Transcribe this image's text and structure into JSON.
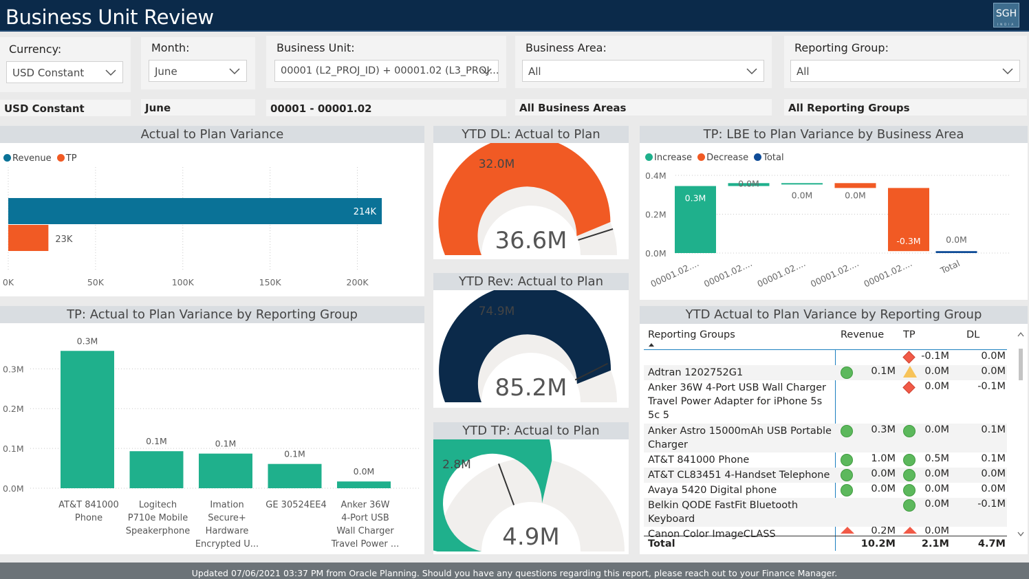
{
  "header": {
    "title": "Business Unit Review",
    "logo_text": "SGH",
    "logo_sub": "INDIA"
  },
  "slicers": {
    "currency": {
      "label": "Currency:",
      "value": "USD Constant",
      "card": "USD Constant"
    },
    "month": {
      "label": "Month:",
      "value": "June",
      "card": "June"
    },
    "business_unit": {
      "label": "Business Unit:",
      "value": "00001 (L2_PROJ_ID) + 00001.02 (L3_PROJ...",
      "card": "00001 - 00001.02"
    },
    "business_area": {
      "label": "Business Area:",
      "value": "All",
      "card": "All Business Areas"
    },
    "reporting_group": {
      "label": "Reporting Group:",
      "value": "All",
      "card": "All Reporting Groups"
    }
  },
  "colors": {
    "revenue": "#0a7297",
    "tp": "#f15a24",
    "green": "#1fb08c",
    "navy": "#0b2a4a",
    "gauge_bg": "#f1efed",
    "total": "#0f4c97"
  },
  "variance_chart": {
    "title": "Actual to Plan Variance",
    "chart_data": {
      "type": "bar",
      "orientation": "horizontal",
      "series": [
        {
          "name": "Revenue",
          "values": [
            214
          ]
        },
        {
          "name": "TP",
          "values": [
            23
          ]
        }
      ],
      "data_labels": [
        "214K",
        "23K"
      ],
      "xlim": [
        0,
        225
      ],
      "ticks": [
        0,
        50,
        100,
        150,
        200
      ],
      "tick_labels": [
        "0K",
        "50K",
        "100K",
        "150K",
        "200K"
      ],
      "legend": "top-left",
      "grid": true
    }
  },
  "gauges": [
    {
      "title": "YTD DL: Actual to Plan",
      "chart_data": {
        "type": "gauge",
        "value": 32.0,
        "max": 36.6,
        "target": 33.0,
        "value_label": "32.0M",
        "target_label": "36.6M"
      },
      "color": "#f15a24"
    },
    {
      "title": "YTD Rev: Actual to Plan",
      "chart_data": {
        "type": "gauge",
        "value": 74.9,
        "max": 85.2,
        "target": 72.5,
        "value_label": "74.9M",
        "target_label": "85.2M"
      },
      "color": "#0b2a4a"
    },
    {
      "title": "YTD TP: Actual to Plan",
      "chart_data": {
        "type": "gauge",
        "value": 2.8,
        "max": 4.9,
        "target": 1.9,
        "value_label": "2.8M",
        "target_label": "4.9M"
      },
      "color": "#1fb08c"
    }
  ],
  "waterfall": {
    "title": "TP: LBE to Plan Variance by Business Area",
    "legend": [
      "Increase",
      "Decrease",
      "Total"
    ],
    "chart_data": {
      "type": "waterfall",
      "categories": [
        "00001.02....",
        "00001.02....",
        "00001.02....",
        "00001.02....",
        "00001.02....",
        "Total"
      ],
      "steps": [
        {
          "start": 0.0,
          "end": 0.345,
          "kind": "increase",
          "label": "0.3M"
        },
        {
          "start": 0.345,
          "end": 0.36,
          "kind": "increase",
          "label": "0.0M"
        },
        {
          "start": 0.36,
          "end": 0.36,
          "kind": "increase",
          "label": "0.0M"
        },
        {
          "start": 0.36,
          "end": 0.335,
          "kind": "decrease",
          "label": "0.0M"
        },
        {
          "start": 0.335,
          "end": 0.01,
          "kind": "decrease",
          "label": "-0.3M"
        },
        {
          "start": 0.0,
          "end": 0.01,
          "kind": "total",
          "label": "0.0M"
        }
      ],
      "ylim": [
        0,
        0.4
      ],
      "ticks": [
        0.0,
        0.2,
        0.4
      ],
      "tick_labels": [
        "0.0M",
        "0.2M",
        "0.4M"
      ],
      "grid": true
    }
  },
  "tp_bar": {
    "title": "TP: Actual to Plan Variance by Reporting Group",
    "chart_data": {
      "type": "bar",
      "categories": [
        [
          "AT&T 841000",
          "Phone"
        ],
        [
          "Logitech",
          "P710e Mobile",
          "Speakerphone"
        ],
        [
          "Imation",
          "Secure+",
          "Hardware",
          "Encrypted U..."
        ],
        [
          "GE 30524EE4"
        ],
        [
          "Anker 36W",
          "4-Port USB",
          "Wall Charger",
          "Travel Power ..."
        ]
      ],
      "values": [
        0.345,
        0.093,
        0.087,
        0.061,
        0.017
      ],
      "data_labels": [
        "0.3M",
        "0.1M",
        "0.1M",
        "0.1M",
        "0.0M"
      ],
      "ylim": [
        0,
        0.38
      ],
      "ticks": [
        0.0,
        0.1,
        0.2,
        0.3
      ],
      "tick_labels": [
        "0.0M",
        "0.1M",
        "0.2M",
        "0.3M"
      ],
      "grid": true
    }
  },
  "table": {
    "title": "YTD Actual to Plan Variance by Reporting Group",
    "columns": {
      "group": "Reporting Groups",
      "revenue": "Revenue",
      "tp": "TP",
      "dl": "DL"
    },
    "rows": [
      {
        "name": "",
        "rev_icon": "",
        "revenue": "",
        "tp_icon": "diamond",
        "tp": "-0.1M",
        "dl": "0.0M"
      },
      {
        "name": "Adtran 1202752G1",
        "rev_icon": "circle",
        "revenue": "0.1M",
        "tp_icon": "triangle",
        "tp": "0.0M",
        "dl": "0.0M"
      },
      {
        "name": "Anker 36W 4-Port USB Wall Charger Travel Power Adapter for iPhone 5s 5c 5",
        "rev_icon": "",
        "revenue": "",
        "tp_icon": "diamond",
        "tp": "0.0M",
        "dl": "-0.1M"
      },
      {
        "name": "Anker Astro 15000mAh USB Portable Charger",
        "rev_icon": "circle",
        "revenue": "0.3M",
        "tp_icon": "circle",
        "tp": "0.0M",
        "dl": "0.1M"
      },
      {
        "name": "AT&T 841000 Phone",
        "rev_icon": "circle",
        "revenue": "1.0M",
        "tp_icon": "circle",
        "tp": "0.5M",
        "dl": "0.1M"
      },
      {
        "name": "AT&T CL83451 4-Handset Telephone",
        "rev_icon": "circle",
        "revenue": "0.0M",
        "tp_icon": "circle",
        "tp": "0.0M",
        "dl": "0.0M"
      },
      {
        "name": "Avaya 5420 Digital phone",
        "rev_icon": "circle",
        "revenue": "0.0M",
        "tp_icon": "circle",
        "tp": "0.0M",
        "dl": "0.0M"
      },
      {
        "name": "Belkin QODE FastFit Bluetooth Keyboard",
        "rev_icon": "",
        "revenue": "",
        "tp_icon": "circle",
        "tp": "0.0M",
        "dl": "-0.1M"
      },
      {
        "name": "Canon Color ImageCLASS",
        "rev_icon": "tri-red",
        "revenue": "0.2M",
        "tp_icon": "tri-red",
        "tp": "0.0M",
        "dl": ""
      }
    ],
    "total": {
      "label": "Total",
      "revenue": "10.2M",
      "tp": "2.1M",
      "dl": "4.7M"
    }
  },
  "footer": {
    "text": "Updated 07/06/2021 03:37 PM from Oracle Planning. Should you have any questions regarding this report, please reach out to your Finance Manager."
  }
}
